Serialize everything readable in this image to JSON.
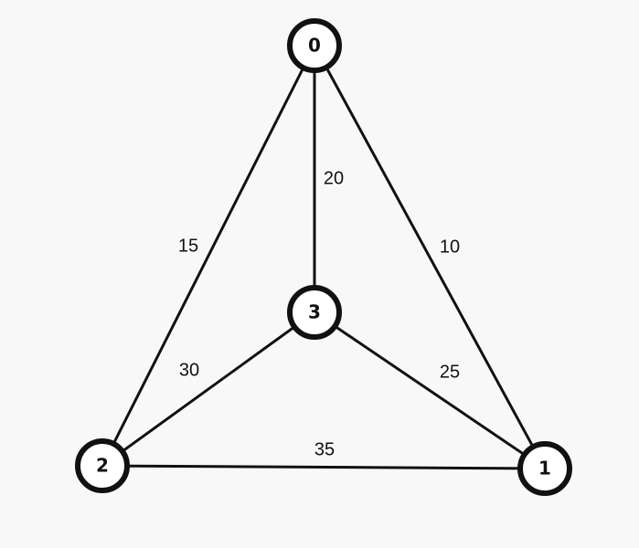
{
  "graph": {
    "nodes": [
      {
        "id": "0",
        "label": "0"
      },
      {
        "id": "1",
        "label": "1"
      },
      {
        "id": "2",
        "label": "2"
      },
      {
        "id": "3",
        "label": "3"
      }
    ],
    "edges": [
      {
        "from": "0",
        "to": "1",
        "weight": "10"
      },
      {
        "from": "0",
        "to": "2",
        "weight": "15"
      },
      {
        "from": "0",
        "to": "3",
        "weight": "20"
      },
      {
        "from": "3",
        "to": "1",
        "weight": "25"
      },
      {
        "from": "3",
        "to": "2",
        "weight": "30"
      },
      {
        "from": "2",
        "to": "1",
        "weight": "35"
      }
    ]
  },
  "colors": {
    "background": "#f8f8f8",
    "stroke": "#111111",
    "node_fill": "#ffffff",
    "text": "#111111"
  }
}
